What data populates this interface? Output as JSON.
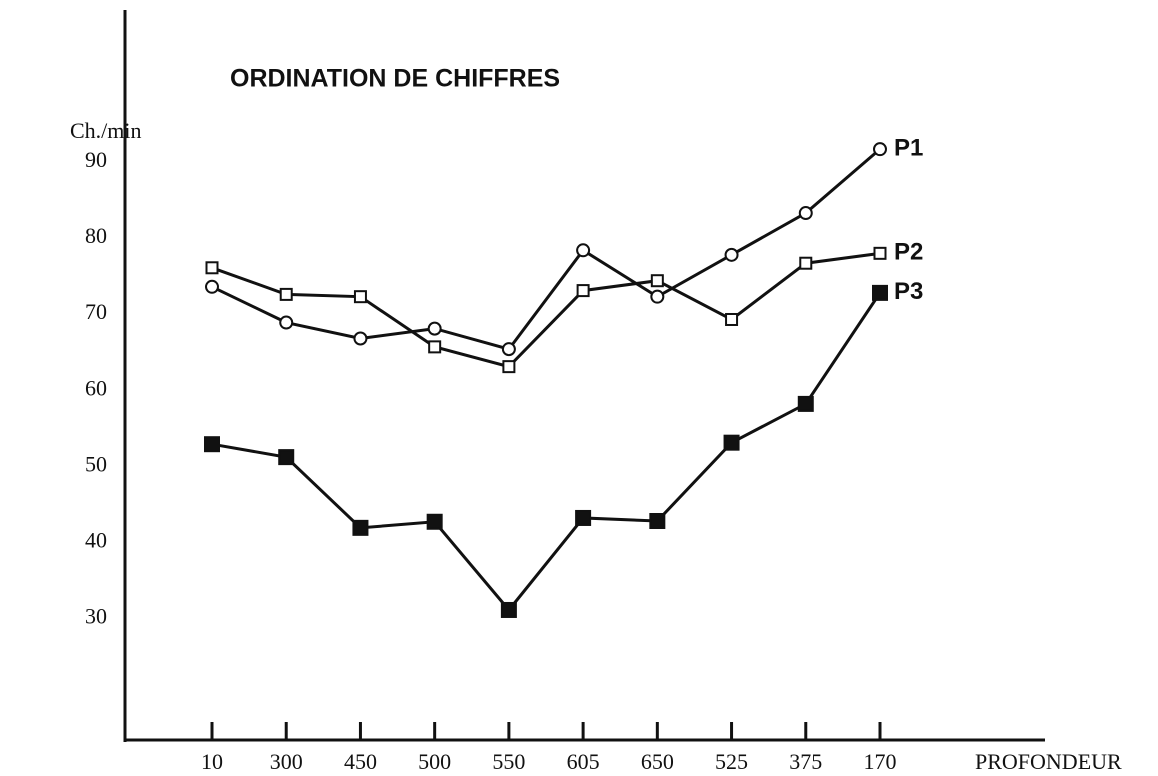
{
  "chart_data": {
    "type": "line",
    "title": "ORDINATION DE CHIFFRES",
    "y_label": "Ch./min",
    "x_label": "PROFONDEUR",
    "categories": [
      "10",
      "300",
      "450",
      "500",
      "550",
      "605",
      "650",
      "525",
      "375",
      "170"
    ],
    "series": [
      {
        "name": "P1",
        "color": "#111111",
        "marker": "circle",
        "values": [
          73.6,
          68.9,
          66.8,
          68.1,
          65.4,
          78.4,
          72.3,
          77.8,
          83.3,
          91.7
        ]
      },
      {
        "name": "P2",
        "color": "#111111",
        "marker": "square-open",
        "values": [
          76.1,
          72.6,
          72.3,
          65.7,
          63.1,
          73.1,
          74.4,
          69.3,
          76.7,
          78
        ]
      },
      {
        "name": "P3",
        "color": "#111111",
        "marker": "square-filled",
        "values": [
          52.9,
          51.2,
          41.9,
          42.7,
          31.1,
          43.2,
          42.8,
          53.1,
          58.2,
          72.8
        ]
      }
    ],
    "ylim": [
      14,
      110
    ],
    "yticks": [
      30,
      40,
      50,
      60,
      70,
      80,
      90
    ],
    "grid": false
  }
}
